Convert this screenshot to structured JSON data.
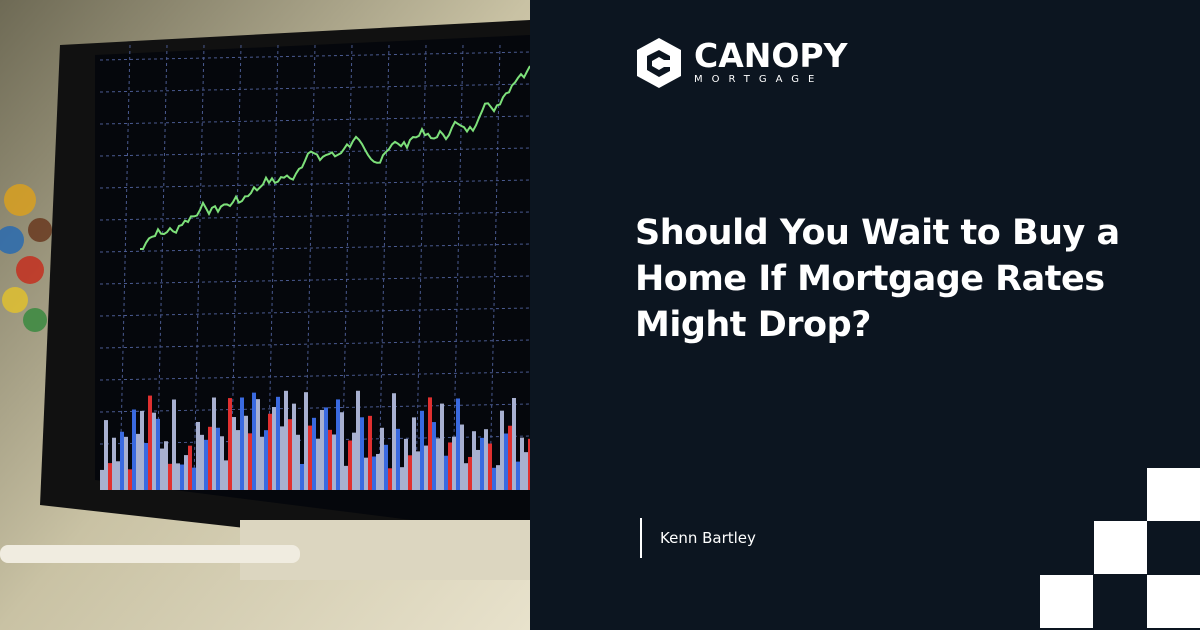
{
  "brand": {
    "name": "CANOPY",
    "tagline": "MORTGAGE",
    "logo_icon": "hexagon-c-icon"
  },
  "article": {
    "title": "Should You Wait to Buy a Home If Mortgage Rates Might Drop?",
    "author": "Kenn Bartley"
  },
  "colors": {
    "background": "#0c1520",
    "text": "#ffffff",
    "chart_line": "#7de07a"
  }
}
